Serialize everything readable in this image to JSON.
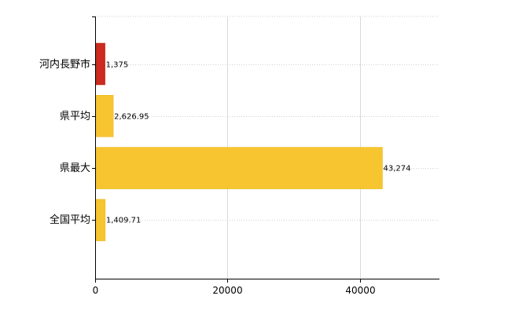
{
  "chart_data": {
    "type": "bar",
    "orientation": "horizontal",
    "categories": [
      "河内長野市",
      "県平均",
      "県最大",
      "全国平均"
    ],
    "values": [
      1375,
      2626.95,
      43274,
      1409.71
    ],
    "data_labels": [
      "1,375",
      "2,626.95",
      "43,274",
      "1,409.71"
    ],
    "x_ticks": [
      0,
      20000,
      40000
    ],
    "x_tick_labels": [
      "0",
      "20000",
      "40000"
    ],
    "xlim": [
      0,
      52000
    ],
    "title": "",
    "xlabel": "",
    "ylabel": "",
    "grid": true,
    "bar_colors": [
      "#cc2b1f",
      "#f7c52f",
      "#f7c52f",
      "#f7c52f"
    ],
    "bar_edge_colors": [
      "#b5180f",
      "#e8b419",
      "#e8b419",
      "#e8b419"
    ]
  }
}
